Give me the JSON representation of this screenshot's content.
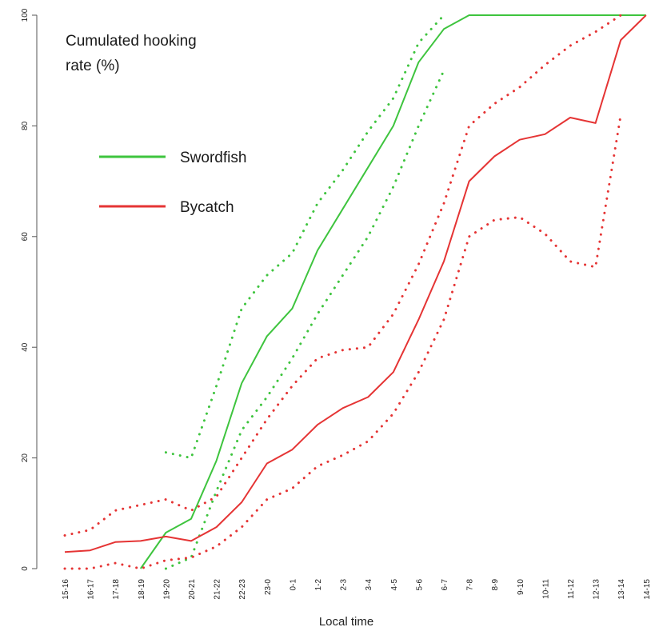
{
  "chart_data": {
    "type": "line",
    "title": "Cumulated hooking rate (%)",
    "xlabel": "Local time",
    "ylabel": "",
    "ylim": [
      0,
      100
    ],
    "yticks": [
      0,
      20,
      40,
      60,
      80,
      100
    ],
    "grid": false,
    "legend_position": "upper-left",
    "categories": [
      "15-16",
      "16-17",
      "17-18",
      "18-19",
      "19-20",
      "20-21",
      "21-22",
      "22-23",
      "23-0",
      "0-1",
      "1-2",
      "2-3",
      "3-4",
      "4-5",
      "5-6",
      "6-7",
      "7-8",
      "8-9",
      "9-10",
      "10-11",
      "11-12",
      "12-13",
      "13-14",
      "14-15"
    ],
    "series": [
      {
        "name": "Swordfish",
        "color": "#3ec43e",
        "style": "solid",
        "in_legend": true,
        "values": [
          null,
          null,
          null,
          0,
          6.5,
          9,
          19.5,
          33.5,
          42,
          47,
          57.5,
          65,
          72.5,
          80,
          91.5,
          97.5,
          100,
          100,
          100,
          100,
          100,
          100,
          100,
          100
        ]
      },
      {
        "name": "",
        "color": "#3ec43e",
        "style": "dotted",
        "in_legend": false,
        "values": [
          null,
          null,
          null,
          null,
          21,
          20,
          33,
          47,
          53,
          57,
          66,
          72,
          79,
          85,
          95,
          100,
          null,
          null,
          null,
          null,
          null,
          null,
          null,
          null
        ]
      },
      {
        "name": "",
        "color": "#3ec43e",
        "style": "dotted",
        "in_legend": false,
        "values": [
          null,
          null,
          null,
          null,
          0,
          2,
          14,
          25,
          31,
          38,
          46,
          53,
          60,
          69,
          80,
          90,
          null,
          null,
          null,
          null,
          null,
          null,
          null,
          null
        ]
      },
      {
        "name": "Bycatch",
        "color": "#e53434",
        "style": "solid",
        "in_legend": true,
        "values": [
          3,
          3.3,
          4.8,
          5,
          5.8,
          5,
          7.5,
          12,
          19,
          21.5,
          26,
          29,
          31,
          35.5,
          45,
          55.5,
          70,
          74.5,
          77.5,
          78.5,
          81.5,
          80.5,
          95.5,
          100
        ]
      },
      {
        "name": "",
        "color": "#e53434",
        "style": "dotted",
        "in_legend": false,
        "values": [
          6,
          7,
          10.5,
          11.5,
          12.5,
          10.5,
          13,
          20,
          27,
          33,
          38,
          39.5,
          40,
          46,
          55,
          66,
          80,
          84,
          87,
          91,
          94.5,
          97,
          100,
          null
        ]
      },
      {
        "name": "",
        "color": "#e53434",
        "style": "dotted",
        "in_legend": false,
        "values": [
          0,
          0,
          1,
          0,
          1.5,
          2,
          4,
          7.5,
          12.5,
          14.5,
          18.5,
          20.5,
          23,
          28,
          35.5,
          45,
          60,
          63,
          63.5,
          60.5,
          55.5,
          54.5,
          82,
          null
        ]
      }
    ]
  }
}
